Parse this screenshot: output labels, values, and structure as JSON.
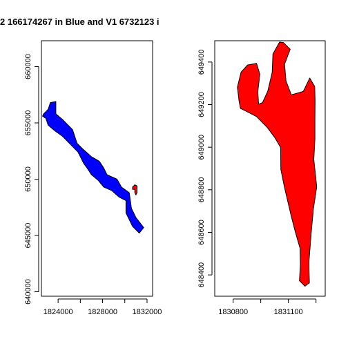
{
  "chart_data": [
    {
      "type": "map",
      "title": "2 166174267 in Blue and V1 6732123 i",
      "xlim": [
        1822500,
        1832500
      ],
      "ylim": [
        639600,
        662300
      ],
      "x_ticks": [
        1824000,
        1826000,
        1828000,
        1830000,
        1832000
      ],
      "x_tick_labels": [
        "1824000",
        "1828000",
        "1832000"
      ],
      "x_tick_labels_at": [
        1824000,
        1828000,
        1832000
      ],
      "y_ticks": [
        640000,
        645000,
        650000,
        655000,
        660000
      ],
      "y_tick_labels": [
        "640000",
        "645000",
        "650000",
        "655000",
        "660000"
      ],
      "series": [
        {
          "color": "#0000ff",
          "polygon": [
            [
              1822700,
              655800
            ],
            [
              1823100,
              656200
            ],
            [
              1823300,
              656800
            ],
            [
              1823800,
              656900
            ],
            [
              1823800,
              655800
            ],
            [
              1824400,
              655300
            ],
            [
              1825300,
              654400
            ],
            [
              1825700,
              653200
            ],
            [
              1826200,
              652700
            ],
            [
              1827000,
              652000
            ],
            [
              1827700,
              651600
            ],
            [
              1828100,
              651000
            ],
            [
              1828400,
              650400
            ],
            [
              1829300,
              650000
            ],
            [
              1829700,
              649300
            ],
            [
              1830400,
              648800
            ],
            [
              1830600,
              647400
            ],
            [
              1831000,
              646600
            ],
            [
              1831700,
              645700
            ],
            [
              1831300,
              645200
            ],
            [
              1830700,
              645800
            ],
            [
              1830100,
              647000
            ],
            [
              1830100,
              648100
            ],
            [
              1829500,
              648400
            ],
            [
              1828800,
              649000
            ],
            [
              1828100,
              649300
            ],
            [
              1827600,
              649900
            ],
            [
              1827000,
              650400
            ],
            [
              1826600,
              651000
            ],
            [
              1826300,
              651400
            ],
            [
              1825800,
              652400
            ],
            [
              1825200,
              653000
            ],
            [
              1824400,
              653800
            ],
            [
              1823700,
              654300
            ],
            [
              1823100,
              654800
            ],
            [
              1822900,
              655400
            ],
            [
              1822600,
              655600
            ]
          ]
        },
        {
          "color": "#ff0000",
          "polygon": [
            [
              1830700,
              649300
            ],
            [
              1830900,
              649500
            ],
            [
              1831100,
              649400
            ],
            [
              1831100,
              648800
            ],
            [
              1831000,
              648600
            ],
            [
              1830900,
              648800
            ],
            [
              1830900,
              649100
            ],
            [
              1830700,
              649100
            ]
          ]
        }
      ]
    },
    {
      "type": "map",
      "title": "",
      "xlim": [
        1830700,
        1831300
      ],
      "ylim": [
        648300,
        649500
      ],
      "x_ticks": [
        1830800,
        1830950,
        1831100,
        1831250
      ],
      "x_tick_labels": [
        "1830800",
        "1831100"
      ],
      "x_tick_labels_at": [
        1830800,
        1831100
      ],
      "y_ticks": [
        648400,
        648600,
        648800,
        649000,
        649200,
        649400
      ],
      "y_tick_labels": [
        "648400",
        "648600",
        "648800",
        "649000",
        "649200",
        "649400"
      ],
      "series": [
        {
          "color": "#ff0000",
          "polygon": [
            [
              1830832,
              649217
            ],
            [
              1830823,
              649282
            ],
            [
              1830843,
              649352
            ],
            [
              1830878,
              649386
            ],
            [
              1830927,
              649394
            ],
            [
              1830945,
              649343
            ],
            [
              1830934,
              649261
            ],
            [
              1830938,
              649202
            ],
            [
              1830960,
              649210
            ],
            [
              1830988,
              649263
            ],
            [
              1831012,
              649351
            ],
            [
              1831016,
              649438
            ],
            [
              1831052,
              649494
            ],
            [
              1831074,
              649491
            ],
            [
              1831110,
              649460
            ],
            [
              1831079,
              649390
            ],
            [
              1831087,
              649311
            ],
            [
              1831116,
              649246
            ],
            [
              1831181,
              649262
            ],
            [
              1831216,
              649325
            ],
            [
              1831243,
              649285
            ],
            [
              1831245,
              649220
            ],
            [
              1831244,
              649125
            ],
            [
              1831244,
              649039
            ],
            [
              1831238,
              648942
            ],
            [
              1831254,
              648814
            ],
            [
              1831236,
              648710
            ],
            [
              1831223,
              648590
            ],
            [
              1831211,
              648455
            ],
            [
              1831214,
              648363
            ],
            [
              1831190,
              648347
            ],
            [
              1831160,
              648373
            ],
            [
              1831165,
              648450
            ],
            [
              1831163,
              648526
            ],
            [
              1831138,
              648601
            ],
            [
              1831116,
              648675
            ],
            [
              1831079,
              648810
            ],
            [
              1831059,
              648896
            ],
            [
              1831058,
              648998
            ],
            [
              1831027,
              649044
            ],
            [
              1830982,
              649096
            ],
            [
              1830927,
              649144
            ],
            [
              1830875,
              649167
            ],
            [
              1830840,
              649182
            ]
          ]
        }
      ]
    }
  ]
}
